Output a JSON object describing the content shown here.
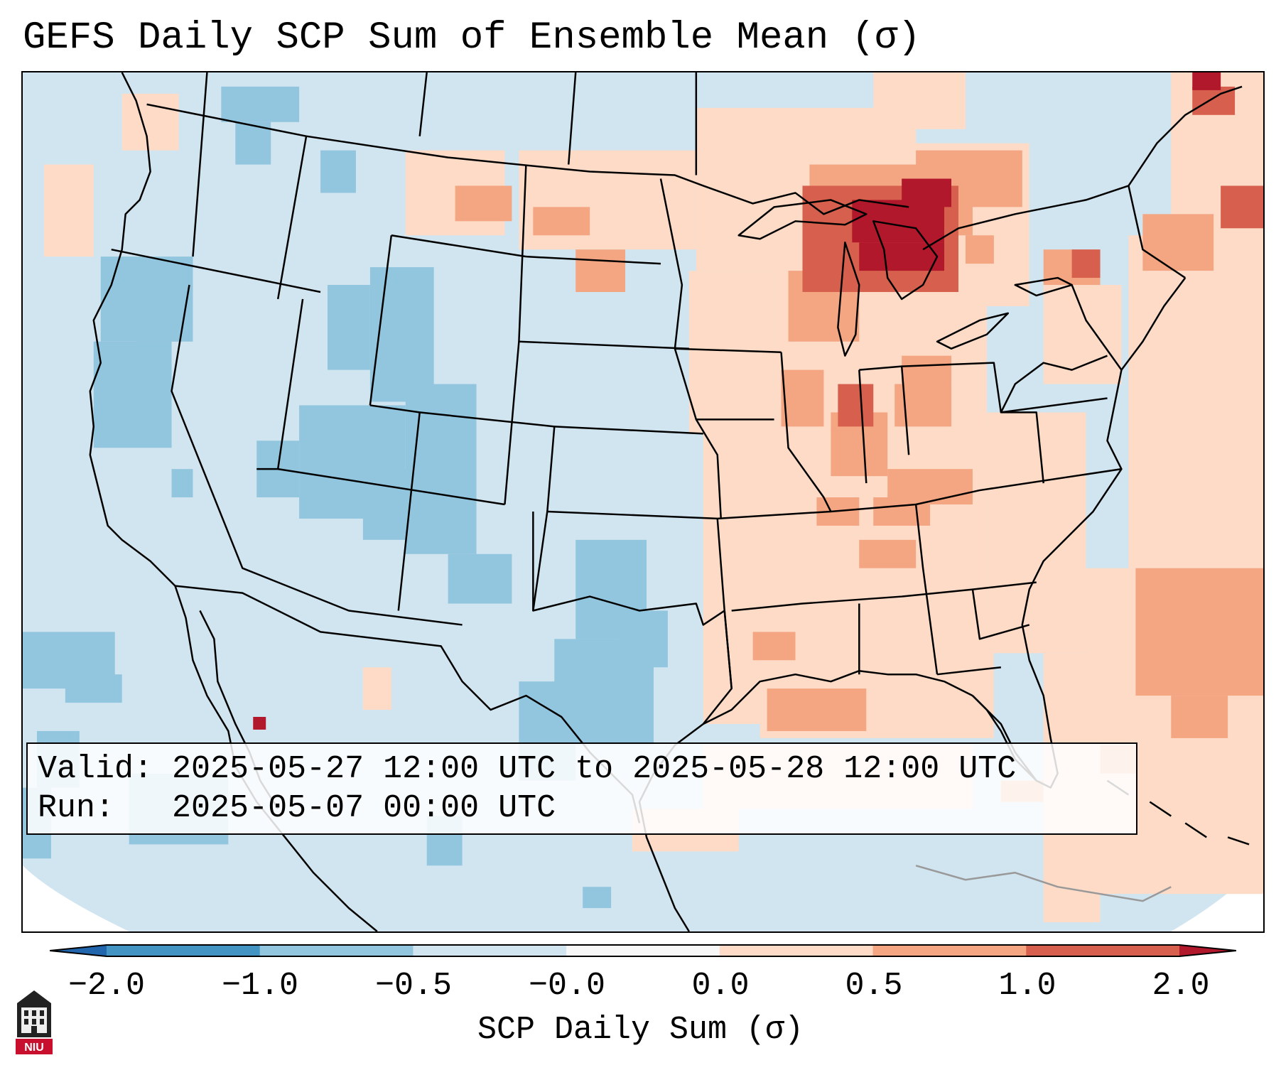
{
  "title": "GEFS Daily SCP Sum of Ensemble Mean (σ)",
  "info": {
    "valid_label": "Valid:",
    "valid_value": "2025-05-27 12:00 UTC to 2025-05-28 12:00 UTC",
    "run_label": "Run:",
    "run_value": "2025-05-07 00:00 UTC"
  },
  "colorbar": {
    "title": "SCP Daily Sum (σ)",
    "ticks": [
      "−2.0",
      "−1.0",
      "−0.5",
      "−0.0",
      "0.0",
      "0.5",
      "1.0",
      "2.0"
    ],
    "bins": [
      {
        "range": "-2.0 to -1.0",
        "color": "#4393c3"
      },
      {
        "range": "-1.0 to -0.5",
        "color": "#92c5de"
      },
      {
        "range": "-0.5 to -0.0",
        "color": "#d1e5f0"
      },
      {
        "range": "-0.0 to 0.0",
        "color": "#f7f7f7"
      },
      {
        "range": "0.0 to 0.5",
        "color": "#fddbc7"
      },
      {
        "range": "0.5 to 1.0",
        "color": "#f4a582"
      },
      {
        "range": "1.0 to 2.0",
        "color": "#d6604d"
      }
    ],
    "under_color": "#2166ac",
    "over_color": "#b2182b"
  },
  "logo": {
    "text": "NIU",
    "icon": "niu-building-logo-icon"
  }
}
